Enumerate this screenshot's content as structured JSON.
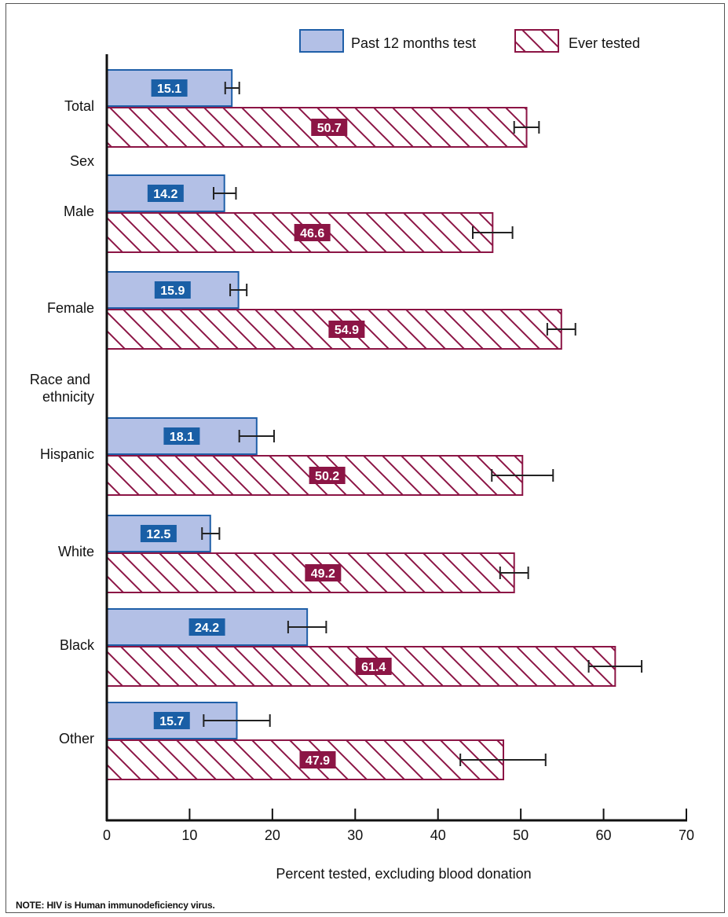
{
  "note": "NOTE: HIV is Human immunodeficiency virus.",
  "chart_data": {
    "type": "bar",
    "orientation": "horizontal",
    "xlabel": "Percent tested, excluding blood donation",
    "xlim": [
      0,
      70
    ],
    "xticks": [
      "0",
      "10",
      "20",
      "30",
      "40",
      "50",
      "60",
      "70"
    ],
    "grid": false,
    "legend_position": "top-right",
    "legend": [
      {
        "label": "Past 12 months test",
        "color": "#b3c0e6",
        "edge": "#1f5fa8",
        "style": "solid"
      },
      {
        "label": "Ever tested",
        "color": "#8c1545",
        "edge": "#8c1545",
        "style": "hatched"
      }
    ],
    "group_labels": [
      "Sex",
      "Race and ethnicity"
    ],
    "categories": [
      "Total",
      "Male",
      "Female",
      "Hispanic",
      "White",
      "Black",
      "Other"
    ],
    "series": [
      {
        "name": "Past 12 months test",
        "values": [
          15.1,
          14.2,
          15.9,
          18.1,
          12.5,
          24.2,
          15.7
        ],
        "labels": [
          "15.1",
          "14.2",
          "15.9",
          "18.1",
          "12.5",
          "24.2",
          "15.7"
        ],
        "error_low": [
          14.3,
          12.9,
          14.9,
          16.0,
          11.5,
          21.9,
          11.7
        ],
        "error_high": [
          16.0,
          15.6,
          16.9,
          20.2,
          13.6,
          26.5,
          19.7
        ]
      },
      {
        "name": "Ever tested",
        "values": [
          50.7,
          46.6,
          54.9,
          50.2,
          49.2,
          61.4,
          47.9
        ],
        "labels": [
          "50.7",
          "46.6",
          "54.9",
          "50.2",
          "49.2",
          "61.4",
          "47.9"
        ],
        "error_low": [
          49.2,
          44.2,
          53.2,
          46.5,
          47.5,
          58.2,
          42.7
        ],
        "error_high": [
          52.2,
          49.0,
          56.6,
          53.9,
          50.9,
          64.6,
          53.0
        ]
      }
    ]
  }
}
